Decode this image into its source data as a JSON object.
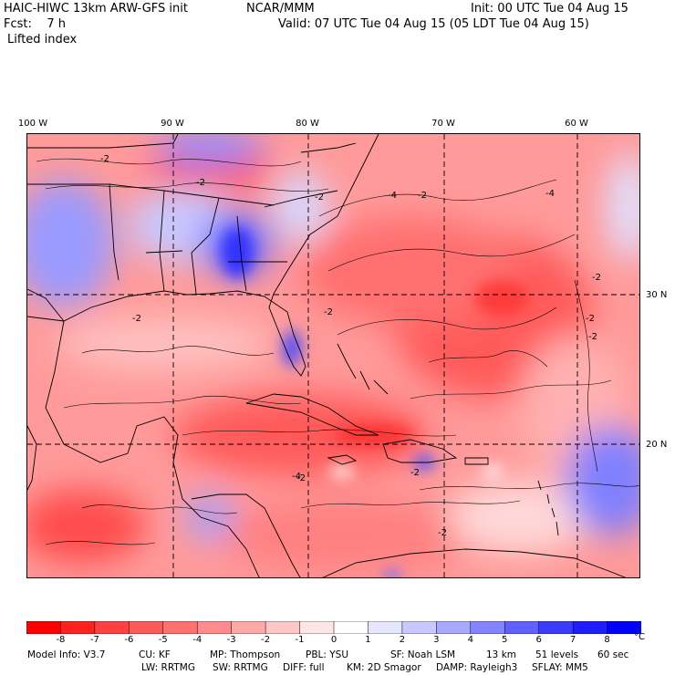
{
  "header": {
    "model": "HAIC-HIWC 13km ARW-GFS init",
    "org": "NCAR/MMM",
    "init": "Init: 00 UTC Tue 04 Aug 15",
    "fcst": "Fcst:    7 h",
    "valid": "Valid: 07 UTC Tue 04 Aug 15 (05 LDT Tue 04 Aug 15)",
    "field": "Lifted index"
  },
  "map": {
    "lon_labels": [
      "100 W",
      "90 W",
      "80 W",
      "70 W",
      "60 W"
    ],
    "lat_labels": [
      "30 N",
      "20 N"
    ],
    "contour_labels": [
      "-2",
      "-2",
      "-2",
      "-2",
      "-2",
      "-2",
      "-2",
      "-2",
      "-2",
      "-2",
      "-4",
      "-4",
      "-4",
      "-2",
      "-2"
    ]
  },
  "colorbar": {
    "labels": [
      "-8",
      "-7",
      "-6",
      "-5",
      "-4",
      "-3",
      "-2",
      "-1",
      "0",
      "1",
      "2",
      "3",
      "4",
      "5",
      "6",
      "7",
      "8"
    ],
    "unit": "°C",
    "colors": [
      "#ff0000",
      "#ff2020",
      "#ff4040",
      "#ff5a5a",
      "#ff7070",
      "#ff8c8c",
      "#ffa8a8",
      "#ffc8c8",
      "#ffe6e6",
      "#ffffff",
      "#e6e6ff",
      "#c8c8ff",
      "#a8a8ff",
      "#8484ff",
      "#6060ff",
      "#3c3cff",
      "#1e1eff",
      "#0000ff"
    ]
  },
  "footer": {
    "line1": [
      "Model Info: V3.7",
      "CU: KF",
      "MP: Thompson",
      "PBL: YSU",
      "SF: Noah LSM",
      "13 km",
      "51 levels",
      "60 sec"
    ],
    "line2": [
      "LW: RRTMG",
      "SW: RRTMG",
      "DIFF: full",
      "KM: 2D Smagor",
      "DAMP: Rayleigh3",
      "SFLAY: MM5"
    ]
  }
}
